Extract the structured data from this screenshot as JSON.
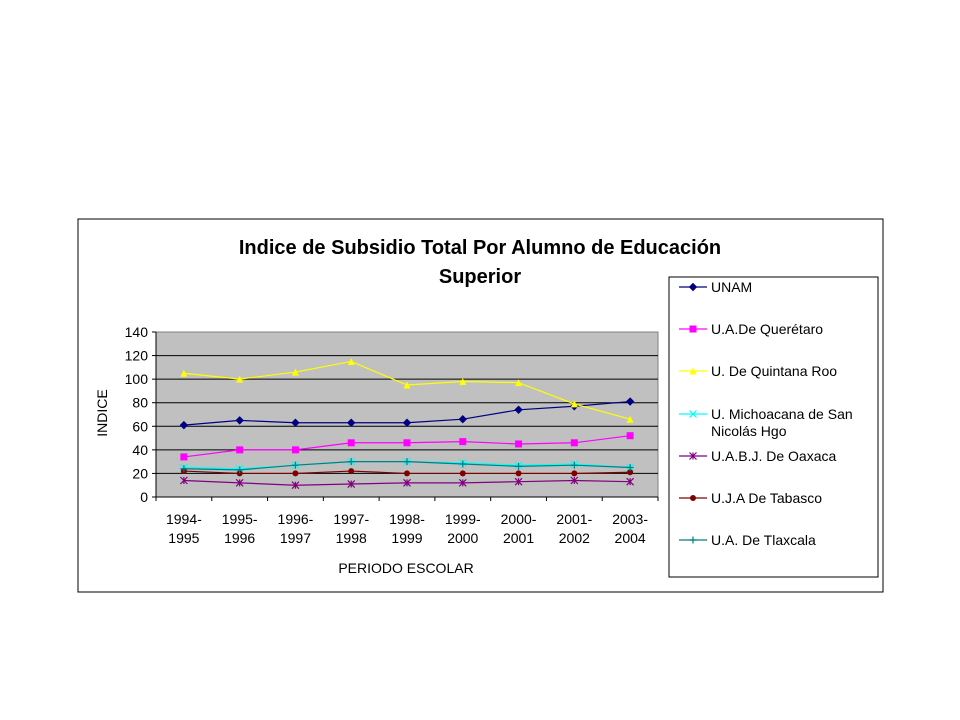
{
  "chart_data": {
    "type": "line",
    "title": [
      "Indice de Subsidio Total Por Alumno de Educación",
      "Superior"
    ],
    "xlabel": "PERIODO ESCOLAR",
    "ylabel": "INDICE",
    "ylim": [
      0,
      140
    ],
    "yticks": [
      "0",
      "20",
      "40",
      "60",
      "80",
      "100",
      "120",
      "140"
    ],
    "grid": "horizontal",
    "plot_background": "#c0c0c0",
    "legend_position": "right",
    "categories": [
      [
        "1994-",
        "1995"
      ],
      [
        "1995-",
        "1996"
      ],
      [
        "1996-",
        "1997"
      ],
      [
        "1997-",
        "1998"
      ],
      [
        "1998-",
        "1999"
      ],
      [
        "1999-",
        "2000"
      ],
      [
        "2000-",
        "2001"
      ],
      [
        "2001-",
        "2002"
      ],
      [
        "2003-",
        "2004"
      ]
    ],
    "series": [
      {
        "name": [
          "UNAM"
        ],
        "color": "#000080",
        "marker": "diamond",
        "values": [
          61,
          65,
          63,
          63,
          63,
          66,
          74,
          77,
          81
        ]
      },
      {
        "name": [
          "U.A.De Querétaro"
        ],
        "color": "#ff00ff",
        "marker": "square",
        "values": [
          34,
          40,
          40,
          46,
          46,
          47,
          45,
          46,
          52
        ]
      },
      {
        "name": [
          "U. De Quintana Roo"
        ],
        "color": "#ffff00",
        "marker": "triangle",
        "values": [
          105,
          100,
          106,
          115,
          95,
          98,
          97,
          79,
          66
        ]
      },
      {
        "name": [
          "U. Michoacana de San",
          "Nicolás Hgo"
        ],
        "color": "#00ffff",
        "marker": "x",
        "values": [
          25,
          24,
          27,
          30,
          30,
          29,
          27,
          28,
          25
        ]
      },
      {
        "name": [
          "U.A.B.J. De Oaxaca"
        ],
        "color": "#800080",
        "marker": "star",
        "values": [
          14,
          12,
          10,
          11,
          12,
          12,
          13,
          14,
          13
        ]
      },
      {
        "name": [
          "U.J.A De Tabasco"
        ],
        "color": "#800000",
        "marker": "circle",
        "values": [
          22,
          20,
          20,
          22,
          20,
          20,
          20,
          20,
          21
        ]
      },
      {
        "name": [
          "U.A. De Tlaxcala"
        ],
        "color": "#008080",
        "marker": "plus",
        "values": [
          24,
          23,
          27,
          30,
          30,
          28,
          26,
          27,
          25
        ]
      }
    ]
  }
}
